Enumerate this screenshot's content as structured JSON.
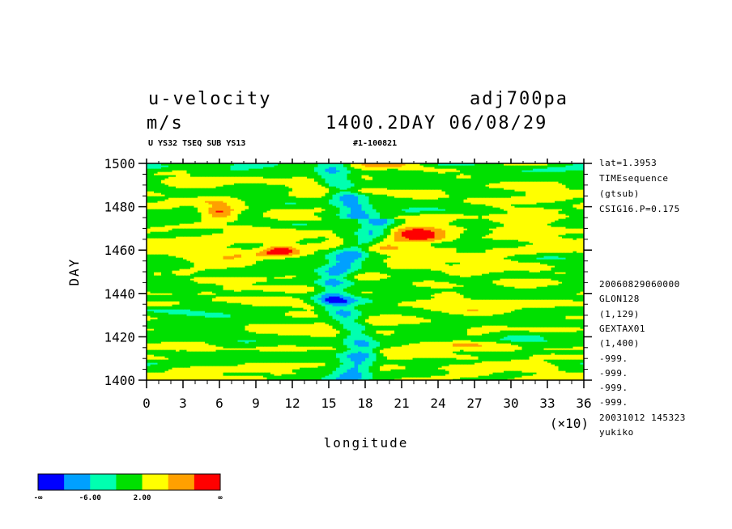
{
  "header": {
    "title_left": "u-velocity",
    "units": "m/s",
    "title_right": "adj700pa",
    "time_stamp": "1400.2DAY 06/08/29",
    "sub_left": "U YS32 TSEQ SUB YS13",
    "sub_right": "#1-100821"
  },
  "side_info": {
    "top_lines": [
      "lat=1.3953",
      "TIMEsequence",
      "(gtsub)",
      "CSIG16.P=0.175"
    ],
    "bottom_lines": [
      "20060829060000",
      "GLON128",
      "(1,129)",
      "GEXTAX01",
      "(1,400)",
      "-999.",
      "-999.",
      "-999.",
      "-999.",
      "20031012 145323",
      "yukiko"
    ]
  },
  "chart_data": {
    "type": "heatmap",
    "title": "u-velocity",
    "xlabel": "longitude",
    "xlabel_multiplier": "(×10)",
    "ylabel": "DAY",
    "xlim": [
      0,
      36
    ],
    "ylim": [
      1400,
      1500
    ],
    "x_ticks": [
      "0",
      "3",
      "6",
      "9",
      "12",
      "15",
      "18",
      "21",
      "24",
      "27",
      "30",
      "33",
      "36"
    ],
    "y_ticks": [
      "1400",
      "1420",
      "1440",
      "1460",
      "1480",
      "1500"
    ],
    "colorbar": {
      "colors": [
        "#0000ff",
        "#00a0ff",
        "#00ffb0",
        "#00e000",
        "#ffff00",
        "#ffa000",
        "#ff0000"
      ],
      "labels": [
        "-∞",
        "-6.00",
        "2.00",
        "∞"
      ]
    },
    "features": [
      {
        "kind": "negative-region",
        "lon_x10": [
          15,
          18
        ],
        "day": [
          1400,
          1500
        ],
        "color": "#0000ff"
      },
      {
        "kind": "positive-region",
        "lon_x10": [
          5,
          7
        ],
        "day": [
          1475,
          1480
        ],
        "color": "#ff0000"
      },
      {
        "kind": "positive-region",
        "lon_x10": [
          10,
          12
        ],
        "day": [
          1458,
          1462
        ],
        "color": "#ff0000"
      },
      {
        "kind": "positive-region",
        "lon_x10": [
          21,
          24
        ],
        "day": [
          1465,
          1469
        ],
        "color": "#ff0000"
      }
    ]
  }
}
